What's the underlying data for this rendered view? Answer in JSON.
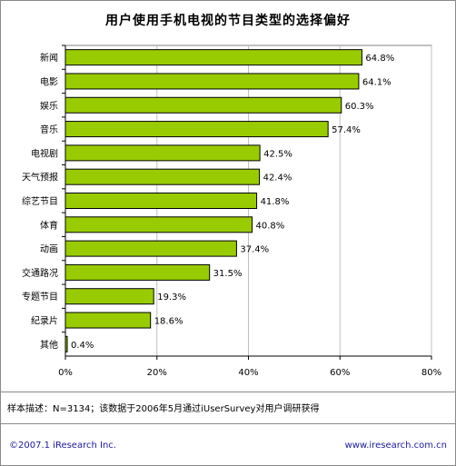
{
  "header": {
    "title": "用户使用手机电视的节目类型的选择偏好"
  },
  "note": "样本描述：N=3134；该数据于2006年5月通过iUserSurvey对用户调研获得",
  "footer": {
    "left": "©2007.1 iResearch Inc.",
    "right": "www.iresearch.com.cn"
  },
  "colors": {
    "bar": "#99CC00",
    "bar_stroke": "#000000",
    "grid": "#C0C0C0"
  },
  "chart_data": {
    "type": "bar",
    "orientation": "horizontal",
    "title": "用户使用手机电视的节目类型的选择偏好",
    "categories": [
      "新闻",
      "电影",
      "娱乐",
      "音乐",
      "电视剧",
      "天气预报",
      "综艺节目",
      "体育",
      "动画",
      "交通路况",
      "专题节目",
      "纪录片",
      "其他"
    ],
    "values": [
      64.8,
      64.1,
      60.3,
      57.4,
      42.5,
      42.4,
      41.8,
      40.8,
      37.4,
      31.5,
      19.3,
      18.6,
      0.4
    ],
    "value_labels": [
      "64.8%",
      "64.1%",
      "60.3%",
      "57.4%",
      "42.5%",
      "42.4%",
      "41.8%",
      "40.8%",
      "37.4%",
      "31.5%",
      "19.3%",
      "18.6%",
      "0.4%"
    ],
    "xlim": [
      0,
      80
    ],
    "xticks": [
      0,
      20,
      40,
      60,
      80
    ],
    "xtick_labels": [
      "0%",
      "20%",
      "40%",
      "60%",
      "80%"
    ],
    "grid": "vertical"
  }
}
